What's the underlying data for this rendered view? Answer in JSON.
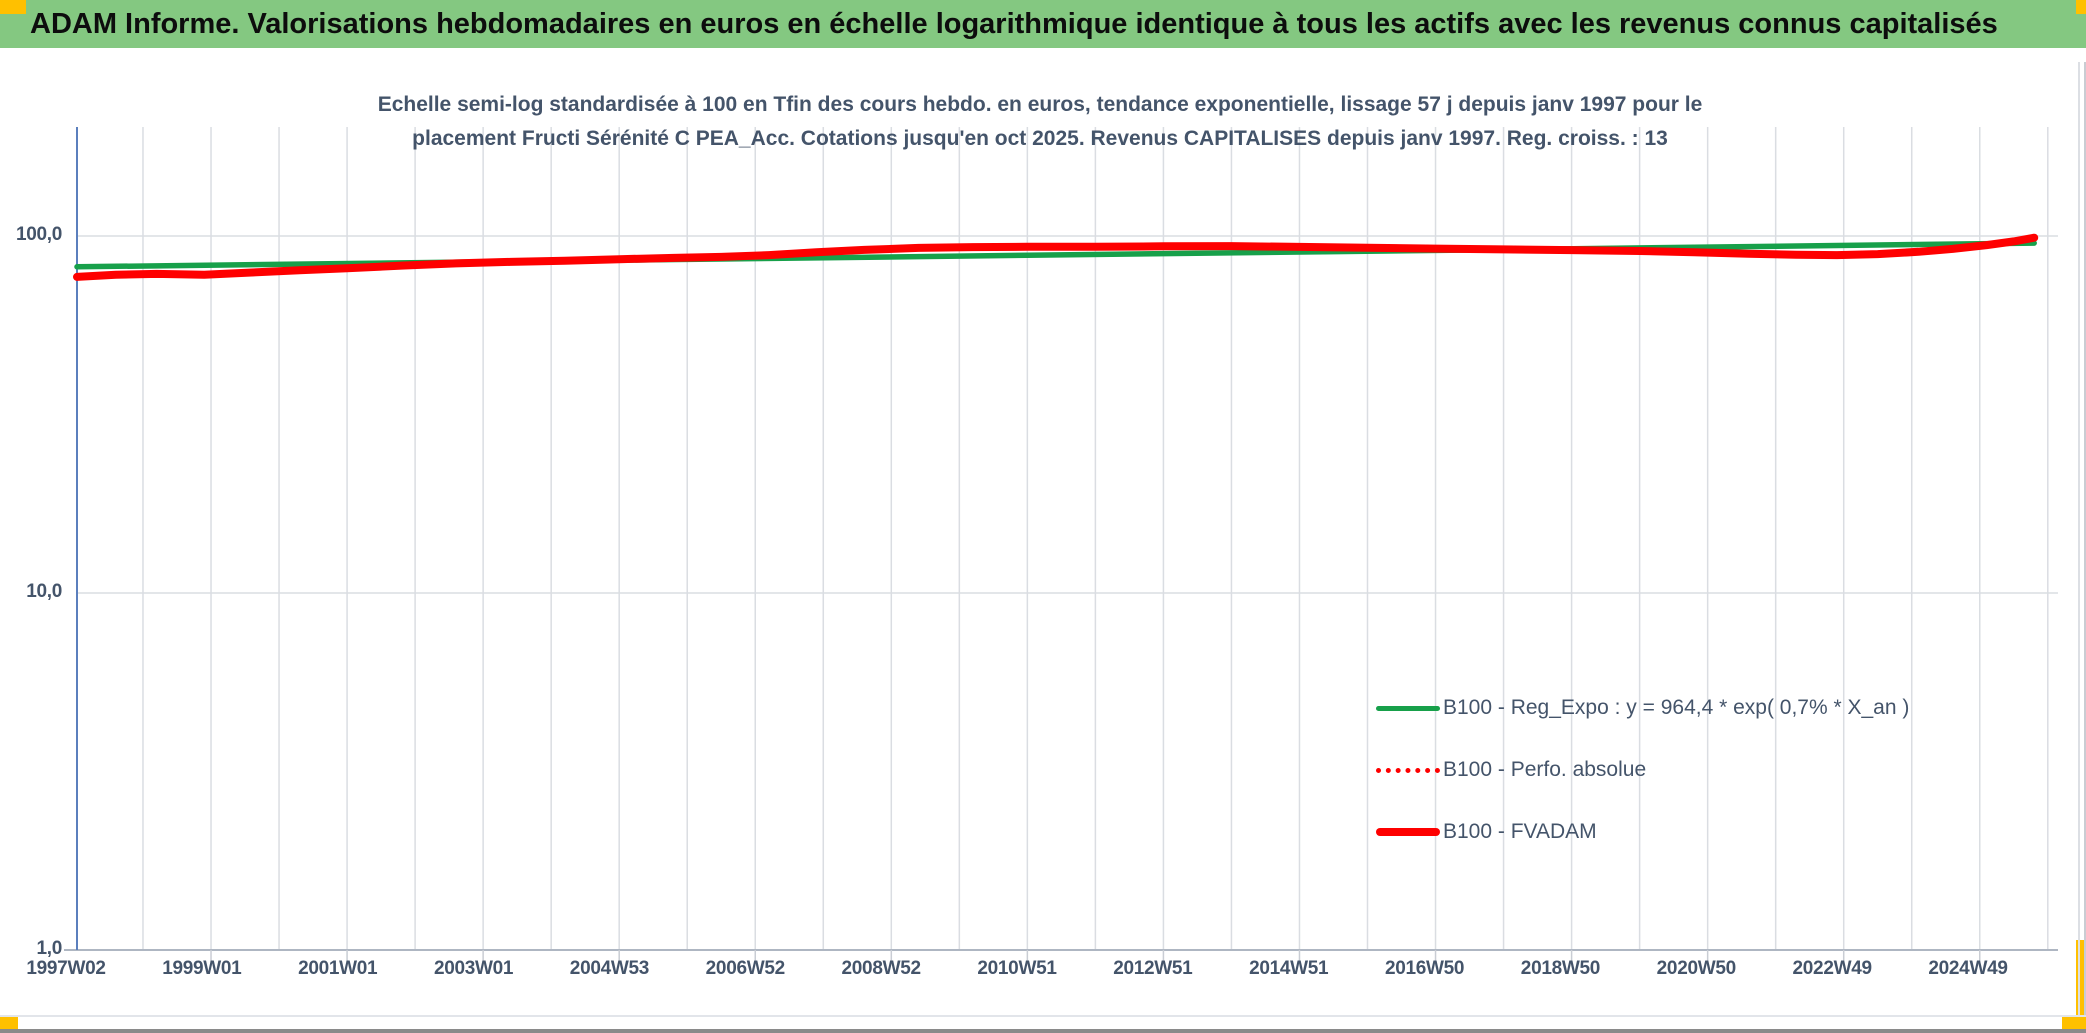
{
  "header": {
    "title": "ADAM Informe. Valorisations hebdomadaires en euros en échelle logarithmique identique à tous les actifs avec les revenus connus capitalisés"
  },
  "colors": {
    "header_green": "#84c881",
    "marker_yellow": "#FFC000",
    "axis_blue": "#5b7fbd",
    "grid_gray": "#dadde2",
    "text_slate": "#44546A",
    "series_green": "#17A04A",
    "series_red": "#FE0000"
  },
  "chart_data": {
    "type": "line",
    "title_line1": "Echelle semi-log standardisée à 100 en Tfin des cours hebdo. en euros, tendance exponentielle, lissage 57 j depuis janv 1997 pour le",
    "title_line2": "placement Fructi Sérénité C PEA_Acc. Cotations jusqu'en oct 2025. Revenus CAPITALISES depuis janv 1997. Reg. croiss. : 13",
    "y_scale": "log",
    "ylim": [
      1,
      200
    ],
    "grid": "on",
    "legend_position": "inside-right-lower",
    "y_ticks": [
      {
        "label": "100,0",
        "value": 100
      },
      {
        "label": "10,0",
        "value": 10
      },
      {
        "label": "1,0",
        "value": 1
      }
    ],
    "x_tick_labels": [
      "1997W02",
      "1999W01",
      "2001W01",
      "2003W01",
      "2004W53",
      "2006W52",
      "2008W52",
      "2010W51",
      "2012W51",
      "2014W51",
      "2016W50",
      "2018W50",
      "2020W50",
      "2022W49",
      "2024W49"
    ],
    "x_range_years": [
      1997.03,
      2026.15
    ],
    "series": [
      {
        "name": "B100 - Reg_Expo : y = 964,4 * exp( 0,7% *  X_an )",
        "color": "#17A04A",
        "style": "solid",
        "width": 5.5,
        "points": [
          [
            1997.03,
            82.0
          ],
          [
            2004.0,
            85.1
          ],
          [
            2011.0,
            88.3
          ],
          [
            2018.0,
            91.6
          ],
          [
            2025.8,
            95.5
          ]
        ]
      },
      {
        "name": "B100 - Perfo. absolue",
        "color": "#FE0000",
        "style": "dotted",
        "width": 4,
        "points": [
          [
            1997.03,
            76.8
          ],
          [
            1997.6,
            77.9
          ],
          [
            1998.2,
            78.3
          ],
          [
            1998.9,
            77.9
          ],
          [
            1999.6,
            79.0
          ],
          [
            2000.3,
            80.2
          ],
          [
            2001.0,
            81.2
          ],
          [
            2001.8,
            82.6
          ],
          [
            2002.6,
            83.8
          ],
          [
            2003.4,
            84.6
          ],
          [
            2004.2,
            85.3
          ],
          [
            2005.0,
            86.1
          ],
          [
            2005.8,
            86.8
          ],
          [
            2006.5,
            87.4
          ],
          [
            2007.2,
            88.4
          ],
          [
            2007.9,
            90.0
          ],
          [
            2008.6,
            91.4
          ],
          [
            2009.4,
            92.6
          ],
          [
            2010.2,
            93.1
          ],
          [
            2011.0,
            93.3
          ],
          [
            2012.0,
            93.3
          ],
          [
            2013.0,
            93.6
          ],
          [
            2014.0,
            93.7
          ],
          [
            2015.0,
            93.2
          ],
          [
            2016.0,
            92.7
          ],
          [
            2017.0,
            92.2
          ],
          [
            2018.0,
            91.7
          ],
          [
            2019.0,
            91.3
          ],
          [
            2020.0,
            90.8
          ],
          [
            2020.8,
            90.1
          ],
          [
            2021.6,
            89.2
          ],
          [
            2022.3,
            88.6
          ],
          [
            2022.9,
            88.4
          ],
          [
            2023.5,
            89.0
          ],
          [
            2024.1,
            90.3
          ],
          [
            2024.6,
            92.0
          ],
          [
            2025.1,
            94.3
          ],
          [
            2025.5,
            96.6
          ],
          [
            2025.8,
            98.9
          ]
        ]
      },
      {
        "name": "B100 - FVADAM",
        "color": "#FE0000",
        "style": "solid",
        "width": 8,
        "points": [
          [
            1997.03,
            76.8
          ],
          [
            1997.6,
            77.9
          ],
          [
            1998.2,
            78.3
          ],
          [
            1998.9,
            77.9
          ],
          [
            1999.6,
            79.0
          ],
          [
            2000.3,
            80.2
          ],
          [
            2001.0,
            81.2
          ],
          [
            2001.8,
            82.6
          ],
          [
            2002.6,
            83.8
          ],
          [
            2003.4,
            84.6
          ],
          [
            2004.2,
            85.3
          ],
          [
            2005.0,
            86.1
          ],
          [
            2005.8,
            86.8
          ],
          [
            2006.5,
            87.4
          ],
          [
            2007.2,
            88.4
          ],
          [
            2007.9,
            90.0
          ],
          [
            2008.6,
            91.4
          ],
          [
            2009.4,
            92.6
          ],
          [
            2010.2,
            93.1
          ],
          [
            2011.0,
            93.3
          ],
          [
            2012.0,
            93.3
          ],
          [
            2013.0,
            93.6
          ],
          [
            2014.0,
            93.7
          ],
          [
            2015.0,
            93.2
          ],
          [
            2016.0,
            92.7
          ],
          [
            2017.0,
            92.2
          ],
          [
            2018.0,
            91.7
          ],
          [
            2019.0,
            91.3
          ],
          [
            2020.0,
            90.8
          ],
          [
            2020.8,
            90.1
          ],
          [
            2021.6,
            89.2
          ],
          [
            2022.3,
            88.6
          ],
          [
            2022.9,
            88.4
          ],
          [
            2023.5,
            89.0
          ],
          [
            2024.1,
            90.3
          ],
          [
            2024.6,
            92.0
          ],
          [
            2025.1,
            94.3
          ],
          [
            2025.5,
            96.6
          ],
          [
            2025.8,
            98.9
          ]
        ]
      }
    ]
  }
}
